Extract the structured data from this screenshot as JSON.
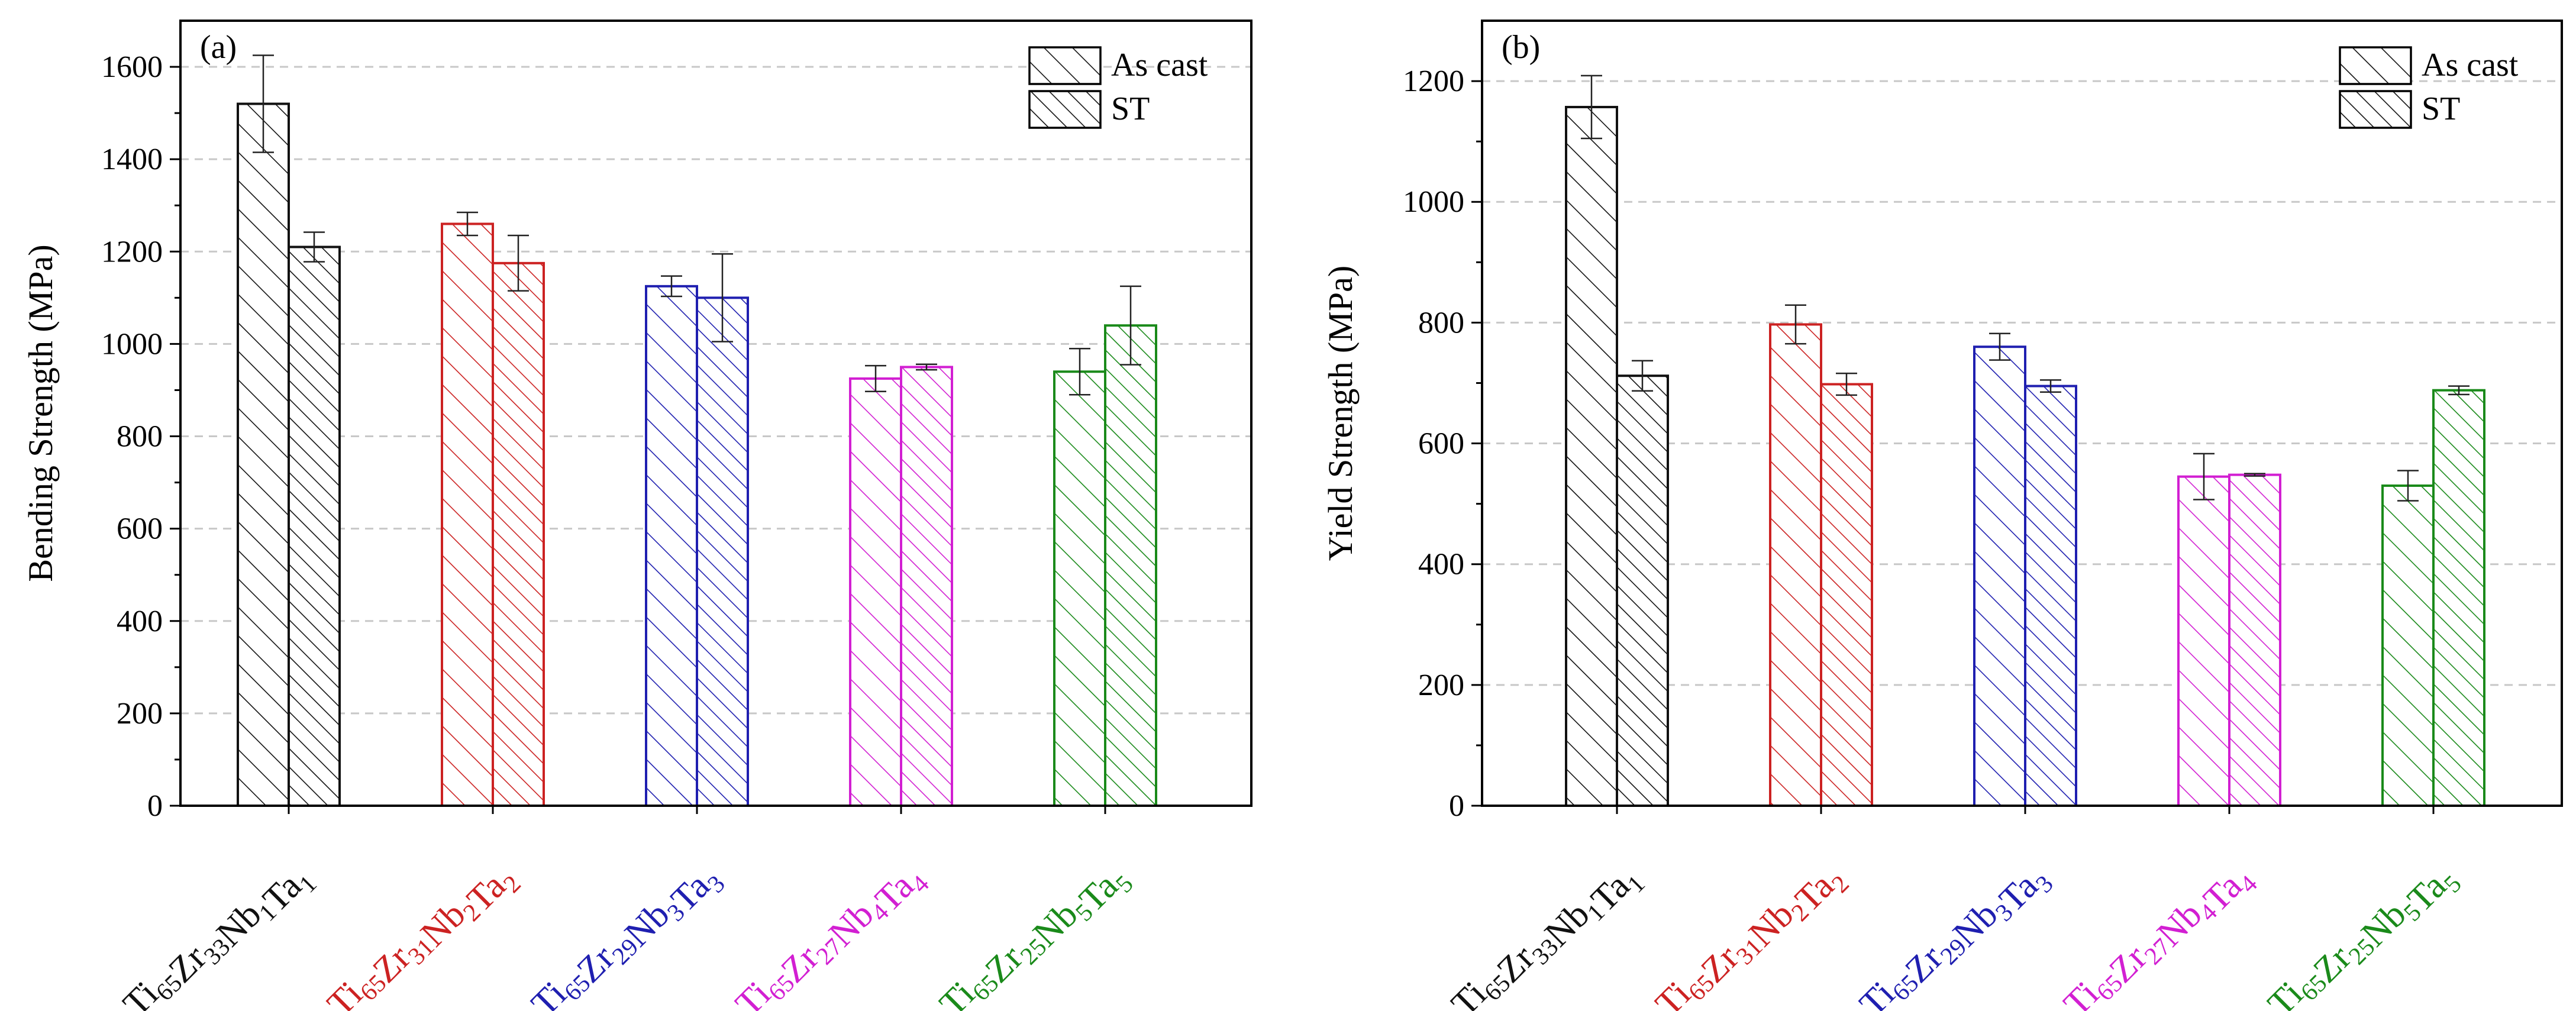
{
  "colors": {
    "c1": "#111111",
    "c2": "#cc2222",
    "c3": "#1f1fb0",
    "c4": "#d21fd2",
    "c5": "#1a8a1a"
  },
  "categories": [
    {
      "key": "c1",
      "color": "#111111",
      "parts": [
        [
          "Ti",
          "65"
        ],
        [
          "Zr",
          "33"
        ],
        [
          "Nb",
          "1"
        ],
        [
          "Ta",
          "1"
        ]
      ]
    },
    {
      "key": "c2",
      "color": "#cc2222",
      "parts": [
        [
          "Ti",
          "65"
        ],
        [
          "Zr",
          "31"
        ],
        [
          "Nb",
          "2"
        ],
        [
          "Ta",
          "2"
        ]
      ]
    },
    {
      "key": "c3",
      "color": "#1f1fb0",
      "parts": [
        [
          "Ti",
          "65"
        ],
        [
          "Zr",
          "29"
        ],
        [
          "Nb",
          "3"
        ],
        [
          "Ta",
          "3"
        ]
      ]
    },
    {
      "key": "c4",
      "color": "#d21fd2",
      "parts": [
        [
          "Ti",
          "65"
        ],
        [
          "Zr",
          "27"
        ],
        [
          "Nb",
          "4"
        ],
        [
          "Ta",
          "4"
        ]
      ]
    },
    {
      "key": "c5",
      "color": "#1a8a1a",
      "parts": [
        [
          "Ti",
          "65"
        ],
        [
          "Zr",
          "25"
        ],
        [
          "Nb",
          "5"
        ],
        [
          "Ta",
          "5"
        ]
      ]
    }
  ],
  "legend": {
    "as_cast": "As cast",
    "st": "ST"
  },
  "chart_data": [
    {
      "type": "bar",
      "panel": "(a)",
      "ylabel": "Bending Strength (MPa)",
      "ylim": [
        0,
        1700
      ],
      "yticks": [
        0,
        200,
        400,
        600,
        800,
        1000,
        1200,
        1400,
        1600
      ],
      "grid": true,
      "legend_position": "top-right",
      "categories": [
        "Ti65Zr33Nb1Ta1",
        "Ti65Zr31Nb2Ta2",
        "Ti65Zr29Nb3Ta3",
        "Ti65Zr27Nb4Ta4",
        "Ti65Zr25Nb5Ta5"
      ],
      "series": [
        {
          "name": "As cast",
          "values": [
            1520,
            1260,
            1125,
            925,
            940
          ],
          "errors": [
            105,
            25,
            22,
            28,
            50
          ]
        },
        {
          "name": "ST",
          "values": [
            1210,
            1175,
            1100,
            950,
            1040
          ],
          "errors": [
            32,
            60,
            95,
            6,
            85
          ]
        }
      ]
    },
    {
      "type": "bar",
      "panel": "(b)",
      "ylabel": "Yield Strength (MPa)",
      "ylim": [
        0,
        1300
      ],
      "yticks": [
        0,
        200,
        400,
        600,
        800,
        1000,
        1200
      ],
      "grid": true,
      "legend_position": "top-right",
      "categories": [
        "Ti65Zr33Nb1Ta1",
        "Ti65Zr31Nb2Ta2",
        "Ti65Zr29Nb3Ta3",
        "Ti65Zr27Nb4Ta4",
        "Ti65Zr25Nb5Ta5"
      ],
      "series": [
        {
          "name": "As cast",
          "values": [
            1157,
            797,
            760,
            545,
            530
          ],
          "errors": [
            52,
            32,
            22,
            38,
            25
          ]
        },
        {
          "name": "ST",
          "values": [
            712,
            698,
            695,
            548,
            688
          ],
          "errors": [
            25,
            18,
            10,
            2,
            7
          ]
        }
      ]
    }
  ]
}
